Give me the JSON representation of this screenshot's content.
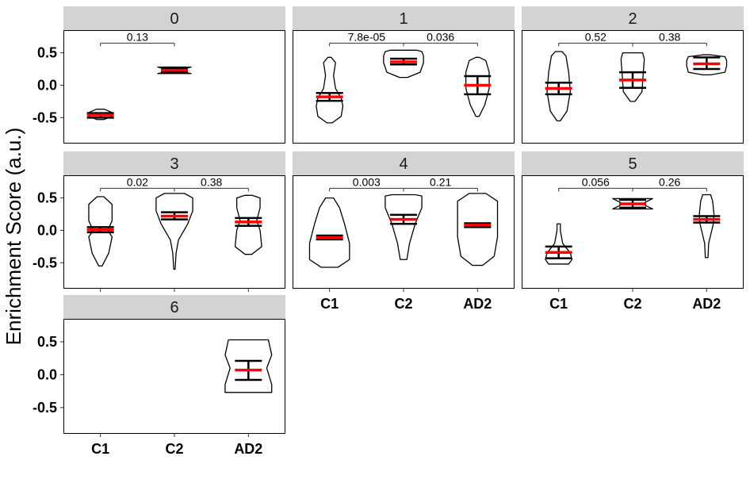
{
  "chart_data": {
    "type": "violin",
    "ylabel": "Enrichment Score (a.u.)",
    "ylim": [
      -0.9,
      0.85
    ],
    "yticks": [
      0.5,
      0.0,
      -0.5
    ],
    "ytick_labels": [
      "0.5",
      "0.0",
      "-0.5"
    ],
    "categories": [
      "C1",
      "C2",
      "AD2"
    ],
    "colors": {
      "mean": "#ff0000",
      "violin": "#000000",
      "strip": "#d3d3d3",
      "panel": "#ffffff"
    },
    "panels": [
      {
        "label": "0",
        "groups": [
          {
            "category": "C1",
            "mean": -0.46,
            "ci_low": -0.5,
            "ci_high": -0.43,
            "violin": [
              [
                -0.53,
                0.1
              ],
              [
                -0.48,
                0.35
              ],
              [
                -0.46,
                0.38
              ],
              [
                -0.42,
                0.34
              ],
              [
                -0.37,
                0.12
              ]
            ]
          },
          {
            "category": "C2",
            "mean": 0.23,
            "ci_low": 0.2,
            "ci_high": 0.26,
            "violin": [
              [
                0.18,
                0.5
              ],
              [
                0.22,
                0.15
              ],
              [
                0.23,
                0.04
              ],
              [
                0.24,
                0.15
              ],
              [
                0.28,
                0.5
              ]
            ]
          }
        ],
        "pvalues": [
          {
            "from": "C1",
            "to": "C2",
            "text": "0.13",
            "y": 0.65
          }
        ]
      },
      {
        "label": "1",
        "groups": [
          {
            "category": "C1",
            "mean": -0.18,
            "ci_low": -0.24,
            "ci_high": -0.12,
            "violin": [
              [
                -0.58,
                0.08
              ],
              [
                -0.48,
                0.35
              ],
              [
                -0.32,
                0.4
              ],
              [
                -0.2,
                0.35
              ],
              [
                -0.05,
                0.18
              ],
              [
                0.15,
                0.12
              ],
              [
                0.35,
                0.18
              ],
              [
                0.43,
                0.05
              ]
            ]
          },
          {
            "category": "C2",
            "mean": 0.36,
            "ci_low": 0.32,
            "ci_high": 0.41,
            "violin": [
              [
                0.12,
                0.12
              ],
              [
                0.2,
                0.5
              ],
              [
                0.35,
                0.6
              ],
              [
                0.45,
                0.6
              ],
              [
                0.52,
                0.55
              ],
              [
                0.54,
                0.4
              ]
            ]
          },
          {
            "category": "AD2",
            "mean": 0.0,
            "ci_low": -0.14,
            "ci_high": 0.14,
            "violin": [
              [
                -0.48,
                0.05
              ],
              [
                -0.3,
                0.22
              ],
              [
                -0.05,
                0.35
              ],
              [
                0.2,
                0.35
              ],
              [
                0.38,
                0.25
              ],
              [
                0.43,
                0.05
              ]
            ]
          }
        ],
        "pvalues": [
          {
            "from": "C1",
            "to": "C2",
            "text": "7.8e-05",
            "y": 0.65
          },
          {
            "from": "C2",
            "to": "AD2",
            "text": "0.036",
            "y": 0.65
          }
        ]
      },
      {
        "label": "2",
        "groups": [
          {
            "category": "C1",
            "mean": -0.05,
            "ci_low": -0.14,
            "ci_high": 0.04,
            "violin": [
              [
                -0.55,
                0.05
              ],
              [
                -0.4,
                0.25
              ],
              [
                -0.1,
                0.35
              ],
              [
                0.2,
                0.3
              ],
              [
                0.45,
                0.22
              ],
              [
                0.52,
                0.1
              ]
            ]
          },
          {
            "category": "C2",
            "mean": 0.08,
            "ci_low": -0.04,
            "ci_high": 0.2,
            "violin": [
              [
                -0.25,
                0.07
              ],
              [
                -0.1,
                0.28
              ],
              [
                0.2,
                0.32
              ],
              [
                0.4,
                0.35
              ],
              [
                0.5,
                0.3
              ]
            ]
          },
          {
            "category": "AD2",
            "mean": 0.33,
            "ci_low": 0.25,
            "ci_high": 0.43,
            "violin": [
              [
                0.16,
                0.12
              ],
              [
                0.2,
                0.55
              ],
              [
                0.3,
                0.6
              ],
              [
                0.38,
                0.6
              ],
              [
                0.44,
                0.55
              ],
              [
                0.47,
                0.1
              ]
            ]
          }
        ],
        "pvalues": [
          {
            "from": "C1",
            "to": "C2",
            "text": "0.52",
            "y": 0.65
          },
          {
            "from": "C2",
            "to": "AD2",
            "text": "0.38",
            "y": 0.65
          }
        ]
      },
      {
        "label": "3",
        "groups": [
          {
            "category": "C1",
            "mean": 0.01,
            "ci_low": -0.03,
            "ci_high": 0.05,
            "violin": [
              [
                -0.55,
                0.05
              ],
              [
                -0.35,
                0.25
              ],
              [
                -0.1,
                0.35
              ],
              [
                0.0,
                0.22
              ],
              [
                0.15,
                0.35
              ],
              [
                0.4,
                0.35
              ],
              [
                0.52,
                0.1
              ]
            ]
          },
          {
            "category": "C2",
            "mean": 0.22,
            "ci_low": 0.17,
            "ci_high": 0.28,
            "violin": [
              [
                -0.6,
                0.02
              ],
              [
                -0.35,
                0.05
              ],
              [
                -0.15,
                0.12
              ],
              [
                0.1,
                0.4
              ],
              [
                0.3,
                0.55
              ],
              [
                0.5,
                0.55
              ],
              [
                0.57,
                0.3
              ]
            ]
          },
          {
            "category": "AD2",
            "mean": 0.13,
            "ci_low": 0.07,
            "ci_high": 0.19,
            "violin": [
              [
                -0.37,
                0.1
              ],
              [
                -0.25,
                0.4
              ],
              [
                0.0,
                0.35
              ],
              [
                0.15,
                0.25
              ],
              [
                0.35,
                0.35
              ],
              [
                0.5,
                0.35
              ],
              [
                0.54,
                0.12
              ]
            ]
          }
        ],
        "pvalues": [
          {
            "from": "C1",
            "to": "C2",
            "text": "0.02",
            "y": 0.65
          },
          {
            "from": "C2",
            "to": "AD2",
            "text": "0.38",
            "y": 0.65
          }
        ]
      },
      {
        "label": "4",
        "groups": [
          {
            "category": "C1",
            "mean": -0.11,
            "ci_low": -0.14,
            "ci_high": -0.08,
            "violin": [
              [
                -0.57,
                0.25
              ],
              [
                -0.45,
                0.6
              ],
              [
                -0.2,
                0.6
              ],
              [
                0.1,
                0.45
              ],
              [
                0.35,
                0.3
              ],
              [
                0.5,
                0.12
              ]
            ]
          },
          {
            "category": "C2",
            "mean": 0.17,
            "ci_low": 0.1,
            "ci_high": 0.24,
            "violin": [
              [
                -0.45,
                0.1
              ],
              [
                -0.2,
                0.18
              ],
              [
                0.1,
                0.35
              ],
              [
                0.35,
                0.55
              ],
              [
                0.53,
                0.55
              ],
              [
                0.55,
                0.35
              ]
            ]
          },
          {
            "category": "AD2",
            "mean": 0.08,
            "ci_low": 0.05,
            "ci_high": 0.11,
            "violin": [
              [
                -0.54,
                0.15
              ],
              [
                -0.4,
                0.5
              ],
              [
                -0.1,
                0.6
              ],
              [
                0.2,
                0.6
              ],
              [
                0.45,
                0.6
              ],
              [
                0.57,
                0.25
              ]
            ]
          }
        ],
        "pvalues": [
          {
            "from": "C1",
            "to": "C2",
            "text": "0.003",
            "y": 0.65
          },
          {
            "from": "C2",
            "to": "AD2",
            "text": "0.21",
            "y": 0.65
          }
        ]
      },
      {
        "label": "5",
        "groups": [
          {
            "category": "C1",
            "mean": -0.34,
            "ci_low": -0.43,
            "ci_high": -0.25,
            "violin": [
              [
                -0.52,
                0.3
              ],
              [
                -0.45,
                0.4
              ],
              [
                -0.35,
                0.35
              ],
              [
                -0.2,
                0.12
              ],
              [
                0.0,
                0.05
              ],
              [
                0.1,
                0.05
              ]
            ]
          },
          {
            "category": "C2",
            "mean": 0.41,
            "ci_low": 0.35,
            "ci_high": 0.47,
            "violin": [
              [
                0.33,
                0.6
              ],
              [
                0.38,
                0.4
              ],
              [
                0.41,
                0.3
              ],
              [
                0.44,
                0.4
              ],
              [
                0.49,
                0.6
              ]
            ]
          },
          {
            "category": "AD2",
            "mean": 0.17,
            "ci_low": 0.12,
            "ci_high": 0.22,
            "violin": [
              [
                -0.42,
                0.04
              ],
              [
                -0.2,
                0.06
              ],
              [
                0.1,
                0.2
              ],
              [
                0.25,
                0.22
              ],
              [
                0.45,
                0.18
              ],
              [
                0.55,
                0.12
              ]
            ]
          }
        ],
        "pvalues": [
          {
            "from": "C1",
            "to": "C2",
            "text": "0.056",
            "y": 0.65
          },
          {
            "from": "C2",
            "to": "AD2",
            "text": "0.26",
            "y": 0.65
          }
        ]
      },
      {
        "label": "6",
        "groups": [
          {
            "category": "AD2",
            "mean": 0.07,
            "ci_low": -0.08,
            "ci_high": 0.21,
            "violin": [
              [
                -0.27,
                0.7
              ],
              [
                -0.15,
                0.7
              ],
              [
                0.1,
                0.55
              ],
              [
                0.3,
                0.7
              ],
              [
                0.53,
                0.6
              ]
            ]
          }
        ],
        "pvalues": []
      }
    ]
  }
}
